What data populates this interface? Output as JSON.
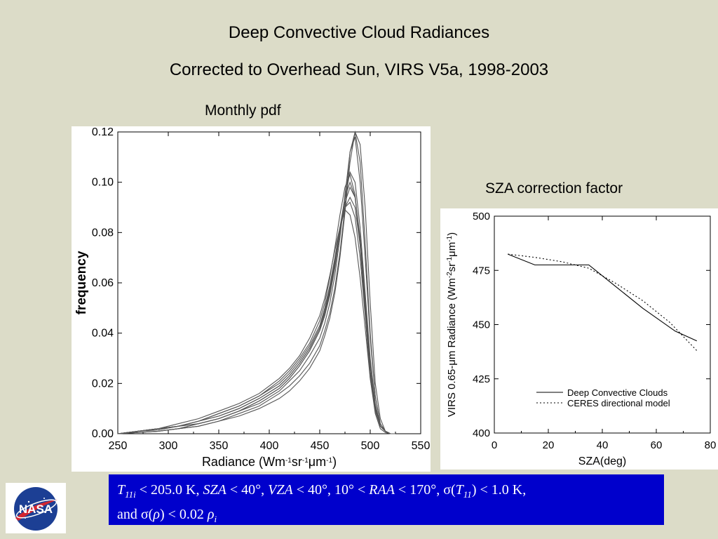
{
  "slide": {
    "title_line1": "Deep Convective Cloud Radiances",
    "title_line2": "Corrected to Overhead Sun, VIRS V5a, 1998-2003",
    "left_label": "Monthly pdf",
    "right_label": "SZA correction factor",
    "logo_text": "NASA",
    "footnote": {
      "t11i": "T",
      "t11i_sub": "11i",
      "part1": " < 205.0 K, ",
      "sza": "SZA",
      "part2": " < 40°, ",
      "vza": "VZA",
      "part3": " < 40°, 10° < ",
      "raa": "RAA",
      "part4": " < 170°, σ(",
      "t11": "T",
      "t11_sub": "11",
      "part5": ") < 1.0 K,",
      "line2a": "and σ(",
      "rho": "ρ",
      "line2b": ") < 0.02 ",
      "rho2": "ρ",
      "rho2_sub": "i"
    }
  },
  "colors": {
    "background": "#dcdcc8",
    "note_bg": "#0000cc",
    "curve": "#555555"
  },
  "chart_data": [
    {
      "type": "line",
      "title": "Monthly pdf",
      "xlabel": "Radiance (Wm-1sr-1μm-1)",
      "ylabel": "frequency",
      "xlim": [
        250,
        550
      ],
      "ylim": [
        0,
        0.12
      ],
      "xticks": [
        "250",
        "300",
        "350",
        "400",
        "450",
        "500",
        "550"
      ],
      "yticks": [
        "0.00",
        "0.02",
        "0.04",
        "0.06",
        "0.08",
        "0.10",
        "0.12"
      ],
      "x": [
        250,
        270,
        290,
        310,
        330,
        350,
        370,
        390,
        410,
        420,
        430,
        440,
        450,
        455,
        460,
        465,
        470,
        475,
        480,
        485,
        490,
        495,
        500,
        505,
        510,
        515,
        520,
        525
      ],
      "series": [
        {
          "values": [
            0,
            0.001,
            0.002,
            0.003,
            0.005,
            0.008,
            0.011,
            0.015,
            0.021,
            0.025,
            0.03,
            0.036,
            0.045,
            0.052,
            0.062,
            0.074,
            0.087,
            0.098,
            0.103,
            0.095,
            0.075,
            0.048,
            0.022,
            0.008,
            0.002,
            0.0005,
            0,
            0
          ]
        },
        {
          "values": [
            0,
            0.001,
            0.002,
            0.004,
            0.006,
            0.009,
            0.012,
            0.016,
            0.022,
            0.026,
            0.031,
            0.038,
            0.047,
            0.054,
            0.063,
            0.073,
            0.082,
            0.089,
            0.087,
            0.078,
            0.062,
            0.042,
            0.022,
            0.009,
            0.003,
            0.001,
            0,
            0
          ]
        },
        {
          "values": [
            0,
            0.0005,
            0.001,
            0.002,
            0.004,
            0.006,
            0.009,
            0.012,
            0.017,
            0.021,
            0.025,
            0.031,
            0.038,
            0.044,
            0.052,
            0.063,
            0.078,
            0.095,
            0.112,
            0.12,
            0.108,
            0.076,
            0.04,
            0.015,
            0.004,
            0.001,
            0,
            0
          ]
        },
        {
          "values": [
            0,
            0.0005,
            0.001,
            0.002,
            0.003,
            0.005,
            0.008,
            0.011,
            0.016,
            0.019,
            0.023,
            0.028,
            0.035,
            0.041,
            0.048,
            0.058,
            0.072,
            0.09,
            0.112,
            0.118,
            0.1,
            0.07,
            0.038,
            0.015,
            0.004,
            0.001,
            0,
            0
          ]
        },
        {
          "values": [
            0,
            0.001,
            0.002,
            0.003,
            0.005,
            0.007,
            0.01,
            0.014,
            0.019,
            0.023,
            0.028,
            0.034,
            0.042,
            0.048,
            0.057,
            0.068,
            0.082,
            0.094,
            0.1,
            0.094,
            0.076,
            0.05,
            0.025,
            0.01,
            0.003,
            0.001,
            0,
            0
          ]
        },
        {
          "values": [
            0,
            0.001,
            0.0015,
            0.003,
            0.004,
            0.006,
            0.009,
            0.013,
            0.018,
            0.022,
            0.027,
            0.033,
            0.041,
            0.047,
            0.056,
            0.067,
            0.08,
            0.092,
            0.098,
            0.094,
            0.078,
            0.054,
            0.028,
            0.011,
            0.003,
            0.001,
            0,
            0
          ]
        },
        {
          "values": [
            0,
            0.001,
            0.002,
            0.003,
            0.005,
            0.008,
            0.011,
            0.015,
            0.02,
            0.024,
            0.029,
            0.035,
            0.043,
            0.05,
            0.059,
            0.07,
            0.082,
            0.09,
            0.092,
            0.086,
            0.07,
            0.047,
            0.024,
            0.01,
            0.003,
            0.001,
            0,
            0
          ]
        },
        {
          "values": [
            0,
            0.0005,
            0.001,
            0.002,
            0.003,
            0.005,
            0.007,
            0.01,
            0.014,
            0.017,
            0.021,
            0.026,
            0.033,
            0.039,
            0.046,
            0.056,
            0.07,
            0.088,
            0.108,
            0.12,
            0.115,
            0.09,
            0.052,
            0.02,
            0.006,
            0.001,
            0,
            0
          ]
        },
        {
          "values": [
            0,
            0.001,
            0.002,
            0.003,
            0.004,
            0.006,
            0.009,
            0.013,
            0.018,
            0.022,
            0.027,
            0.033,
            0.041,
            0.047,
            0.055,
            0.066,
            0.08,
            0.094,
            0.104,
            0.1,
            0.082,
            0.056,
            0.03,
            0.012,
            0.003,
            0.001,
            0,
            0
          ]
        },
        {
          "values": [
            0,
            0.001,
            0.002,
            0.003,
            0.005,
            0.007,
            0.01,
            0.014,
            0.019,
            0.023,
            0.028,
            0.034,
            0.042,
            0.049,
            0.058,
            0.069,
            0.081,
            0.09,
            0.094,
            0.09,
            0.075,
            0.052,
            0.028,
            0.011,
            0.003,
            0.001,
            0,
            0
          ]
        }
      ]
    },
    {
      "type": "line",
      "title": "SZA correction factor",
      "xlabel": "SZA(deg)",
      "ylabel": "VIRS 0.65-μm Radiance (Wm-2sr-1μm-1)",
      "xlim": [
        0,
        80
      ],
      "ylim": [
        400,
        500
      ],
      "xticks": [
        "0",
        "20",
        "40",
        "60",
        "80"
      ],
      "yticks": [
        "400",
        "425",
        "450",
        "475",
        "500"
      ],
      "series": [
        {
          "name": "Deep Convective Clouds",
          "style": "solid",
          "x": [
            5,
            15,
            25,
            35,
            45,
            55,
            67,
            75
          ],
          "values": [
            482.5,
            477.5,
            477.5,
            477.5,
            467.5,
            457.5,
            447,
            442.5
          ]
        },
        {
          "name": "CERES directional model",
          "style": "dotted",
          "x": [
            5,
            15,
            25,
            35,
            45,
            55,
            65,
            75
          ],
          "values": [
            482.5,
            481,
            479,
            476,
            469,
            461,
            451,
            438
          ]
        }
      ]
    }
  ]
}
